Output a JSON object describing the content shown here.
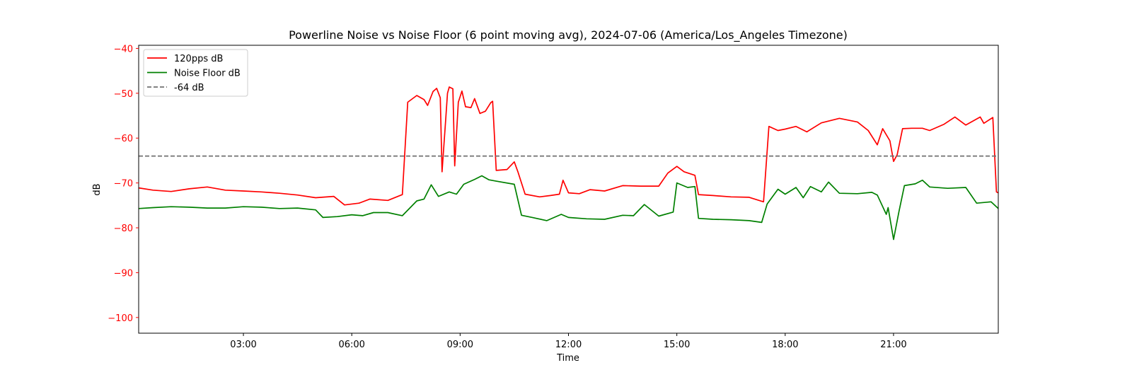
{
  "chart_data": {
    "type": "line",
    "title": "Powerline Noise vs Noise Floor (6 point moving avg), 2024-07-06 (America/Los_Angeles Timezone)",
    "xlabel": "Time",
    "ylabel": "dB",
    "x_unit": "hours",
    "xlim": [
      0.1,
      23.9
    ],
    "ylim": [
      -103.5,
      -39.3
    ],
    "x_ticks": [
      {
        "x": 3,
        "label": "03:00"
      },
      {
        "x": 6,
        "label": "06:00"
      },
      {
        "x": 9,
        "label": "09:00"
      },
      {
        "x": 12,
        "label": "12:00"
      },
      {
        "x": 15,
        "label": "15:00"
      },
      {
        "x": 18,
        "label": "18:00"
      },
      {
        "x": 21,
        "label": "21:00"
      }
    ],
    "y_ticks": [
      {
        "y": -40,
        "label": "−40"
      },
      {
        "y": -50,
        "label": "−50"
      },
      {
        "y": -60,
        "label": "−60"
      },
      {
        "y": -70,
        "label": "−70"
      },
      {
        "y": -80,
        "label": "−80"
      },
      {
        "y": -90,
        "label": "−90"
      },
      {
        "y": -100,
        "label": "−100"
      }
    ],
    "grid": false,
    "legend_position": "top-left",
    "colors": {
      "ylabel": "#ff0000",
      "y_ticks": "#ff0000"
    },
    "series": [
      {
        "name": "120pps dB",
        "color": "#ff0000",
        "style": "solid",
        "points": [
          [
            0.1,
            -71.1
          ],
          [
            0.5,
            -71.6
          ],
          [
            1.0,
            -71.9
          ],
          [
            1.5,
            -71.3
          ],
          [
            2.0,
            -70.9
          ],
          [
            2.5,
            -71.6
          ],
          [
            3.0,
            -71.8
          ],
          [
            3.5,
            -72.0
          ],
          [
            4.0,
            -72.3
          ],
          [
            4.5,
            -72.7
          ],
          [
            5.0,
            -73.3
          ],
          [
            5.5,
            -73.0
          ],
          [
            5.8,
            -74.9
          ],
          [
            6.2,
            -74.5
          ],
          [
            6.5,
            -73.6
          ],
          [
            7.0,
            -73.9
          ],
          [
            7.4,
            -72.6
          ],
          [
            7.55,
            -52.0
          ],
          [
            7.8,
            -50.5
          ],
          [
            8.0,
            -51.4
          ],
          [
            8.1,
            -52.7
          ],
          [
            8.25,
            -49.6
          ],
          [
            8.35,
            -48.9
          ],
          [
            8.45,
            -51.0
          ],
          [
            8.5,
            -67.5
          ],
          [
            8.6,
            -56.0
          ],
          [
            8.65,
            -50.0
          ],
          [
            8.7,
            -48.6
          ],
          [
            8.8,
            -49.0
          ],
          [
            8.85,
            -66.2
          ],
          [
            8.95,
            -52.0
          ],
          [
            9.05,
            -49.5
          ],
          [
            9.15,
            -53.0
          ],
          [
            9.3,
            -53.2
          ],
          [
            9.4,
            -51.2
          ],
          [
            9.55,
            -54.5
          ],
          [
            9.7,
            -54.0
          ],
          [
            9.85,
            -52.1
          ],
          [
            9.9,
            -51.8
          ],
          [
            10.0,
            -67.2
          ],
          [
            10.3,
            -67.0
          ],
          [
            10.5,
            -65.3
          ],
          [
            10.6,
            -67.5
          ],
          [
            10.8,
            -72.5
          ],
          [
            11.2,
            -73.1
          ],
          [
            11.5,
            -72.8
          ],
          [
            11.75,
            -72.5
          ],
          [
            11.85,
            -69.4
          ],
          [
            12.0,
            -72.2
          ],
          [
            12.3,
            -72.4
          ],
          [
            12.6,
            -71.5
          ],
          [
            13.0,
            -71.8
          ],
          [
            13.5,
            -70.6
          ],
          [
            14.0,
            -70.7
          ],
          [
            14.5,
            -70.7
          ],
          [
            14.75,
            -67.8
          ],
          [
            15.0,
            -66.3
          ],
          [
            15.2,
            -67.5
          ],
          [
            15.5,
            -68.3
          ],
          [
            15.6,
            -72.6
          ],
          [
            16.0,
            -72.8
          ],
          [
            16.5,
            -73.1
          ],
          [
            17.0,
            -73.2
          ],
          [
            17.4,
            -74.2
          ],
          [
            17.55,
            -57.4
          ],
          [
            17.8,
            -58.3
          ],
          [
            18.0,
            -58.0
          ],
          [
            18.3,
            -57.4
          ],
          [
            18.6,
            -58.6
          ],
          [
            19.0,
            -56.6
          ],
          [
            19.5,
            -55.6
          ],
          [
            20.0,
            -56.4
          ],
          [
            20.3,
            -58.3
          ],
          [
            20.55,
            -61.5
          ],
          [
            20.7,
            -57.9
          ],
          [
            20.9,
            -60.6
          ],
          [
            21.0,
            -65.2
          ],
          [
            21.1,
            -63.7
          ],
          [
            21.25,
            -57.9
          ],
          [
            21.5,
            -57.8
          ],
          [
            21.8,
            -57.8
          ],
          [
            22.0,
            -58.3
          ],
          [
            22.4,
            -56.9
          ],
          [
            22.7,
            -55.3
          ],
          [
            23.0,
            -57.1
          ],
          [
            23.4,
            -55.3
          ],
          [
            23.5,
            -56.7
          ],
          [
            23.75,
            -55.4
          ],
          [
            23.85,
            -72.0
          ],
          [
            23.9,
            -72.2
          ]
        ]
      },
      {
        "name": "Noise Floor dB",
        "color": "#008000",
        "style": "solid",
        "points": [
          [
            0.1,
            -75.7
          ],
          [
            0.5,
            -75.5
          ],
          [
            1.0,
            -75.3
          ],
          [
            1.5,
            -75.4
          ],
          [
            2.0,
            -75.6
          ],
          [
            2.5,
            -75.6
          ],
          [
            3.0,
            -75.3
          ],
          [
            3.5,
            -75.4
          ],
          [
            4.0,
            -75.7
          ],
          [
            4.5,
            -75.6
          ],
          [
            5.0,
            -76.0
          ],
          [
            5.2,
            -77.7
          ],
          [
            5.6,
            -77.5
          ],
          [
            6.0,
            -77.1
          ],
          [
            6.3,
            -77.3
          ],
          [
            6.6,
            -76.6
          ],
          [
            7.0,
            -76.6
          ],
          [
            7.4,
            -77.3
          ],
          [
            7.8,
            -74.0
          ],
          [
            8.0,
            -73.6
          ],
          [
            8.2,
            -70.4
          ],
          [
            8.4,
            -73.0
          ],
          [
            8.7,
            -72.0
          ],
          [
            8.9,
            -72.5
          ],
          [
            9.1,
            -70.3
          ],
          [
            9.4,
            -69.2
          ],
          [
            9.6,
            -68.4
          ],
          [
            9.8,
            -69.3
          ],
          [
            10.0,
            -69.6
          ],
          [
            10.5,
            -70.3
          ],
          [
            10.7,
            -77.2
          ],
          [
            11.0,
            -77.7
          ],
          [
            11.4,
            -78.4
          ],
          [
            11.8,
            -77.0
          ],
          [
            12.0,
            -77.7
          ],
          [
            12.5,
            -78.0
          ],
          [
            13.0,
            -78.1
          ],
          [
            13.5,
            -77.2
          ],
          [
            13.8,
            -77.3
          ],
          [
            14.1,
            -74.8
          ],
          [
            14.5,
            -77.4
          ],
          [
            14.9,
            -76.5
          ],
          [
            15.0,
            -70.0
          ],
          [
            15.3,
            -71.0
          ],
          [
            15.5,
            -70.8
          ],
          [
            15.6,
            -77.9
          ],
          [
            16.0,
            -78.1
          ],
          [
            16.5,
            -78.2
          ],
          [
            17.0,
            -78.4
          ],
          [
            17.35,
            -78.8
          ],
          [
            17.5,
            -74.7
          ],
          [
            17.8,
            -71.4
          ],
          [
            18.0,
            -72.5
          ],
          [
            18.3,
            -71.0
          ],
          [
            18.5,
            -73.3
          ],
          [
            18.7,
            -70.8
          ],
          [
            19.0,
            -72.0
          ],
          [
            19.2,
            -69.8
          ],
          [
            19.5,
            -72.3
          ],
          [
            20.0,
            -72.4
          ],
          [
            20.4,
            -72.1
          ],
          [
            20.55,
            -72.7
          ],
          [
            20.8,
            -77.0
          ],
          [
            20.85,
            -75.5
          ],
          [
            21.0,
            -82.6
          ],
          [
            21.15,
            -76.4
          ],
          [
            21.3,
            -70.6
          ],
          [
            21.6,
            -70.2
          ],
          [
            21.8,
            -69.4
          ],
          [
            22.0,
            -70.9
          ],
          [
            22.5,
            -71.2
          ],
          [
            23.0,
            -71.0
          ],
          [
            23.3,
            -74.5
          ],
          [
            23.7,
            -74.2
          ],
          [
            23.9,
            -75.7
          ]
        ]
      },
      {
        "name": "-64 dB",
        "color": "#707070",
        "style": "dashed",
        "points": [
          [
            0.1,
            -64
          ],
          [
            23.9,
            -64
          ]
        ]
      }
    ]
  }
}
